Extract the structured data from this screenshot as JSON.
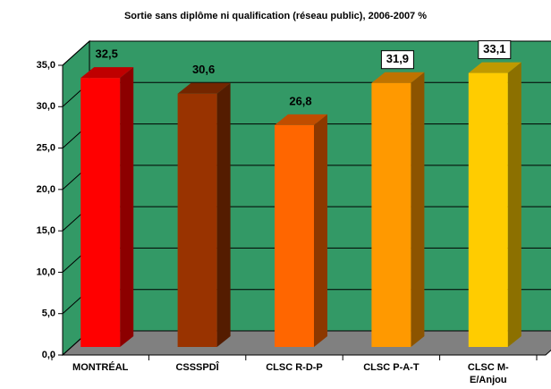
{
  "chart_data": {
    "type": "bar3d",
    "title": "Sortie sans diplôme ni qualification (réseau public), 2006-2007 %",
    "categories": [
      "MONTRÉAL",
      "CSSSPDÎ",
      "CLSC R-D-P",
      "CLSC P-A-T",
      "CLSC M-E/Anjou"
    ],
    "values": [
      32.5,
      30.6,
      26.8,
      31.9,
      33.1
    ],
    "value_labels": [
      "32,5",
      "30,6",
      "26,8",
      "31,9",
      "33,1"
    ],
    "colors": [
      "#ff0000",
      "#993300",
      "#ff6600",
      "#ff9900",
      "#ffcc00"
    ],
    "ylim": [
      0,
      35
    ],
    "yticks": [
      {
        "value": 0,
        "label": "0,0"
      },
      {
        "value": 5,
        "label": "5,0"
      },
      {
        "value": 10,
        "label": "10,0"
      },
      {
        "value": 15,
        "label": "15,0"
      },
      {
        "value": 20,
        "label": "20,0"
      },
      {
        "value": 25,
        "label": "25,0"
      },
      {
        "value": 30,
        "label": "30,0"
      },
      {
        "value": 35,
        "label": "35,0"
      }
    ],
    "grid": true
  }
}
